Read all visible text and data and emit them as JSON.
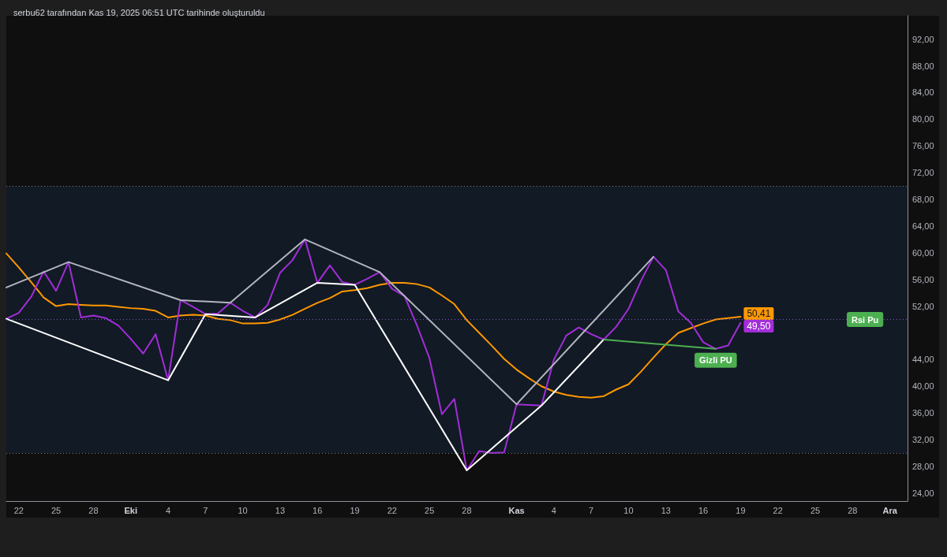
{
  "chart_data": {
    "type": "line",
    "title": "serbu62 tarafından Kas 19, 2025 06:51 UTC tarihinde oluşturuldu",
    "x": [
      "2025-09-21",
      "2025-09-22",
      "2025-09-23",
      "2025-09-24",
      "2025-09-25",
      "2025-09-26",
      "2025-09-27",
      "2025-09-28",
      "2025-09-29",
      "2025-09-30",
      "2025-10-01",
      "2025-10-02",
      "2025-10-03",
      "2025-10-04",
      "2025-10-05",
      "2025-10-06",
      "2025-10-07",
      "2025-10-08",
      "2025-10-09",
      "2025-10-10",
      "2025-10-11",
      "2025-10-12",
      "2025-10-13",
      "2025-10-14",
      "2025-10-15",
      "2025-10-16",
      "2025-10-17",
      "2025-10-18",
      "2025-10-19",
      "2025-10-20",
      "2025-10-21",
      "2025-10-22",
      "2025-10-23",
      "2025-10-24",
      "2025-10-25",
      "2025-10-26",
      "2025-10-27",
      "2025-10-28",
      "2025-10-29",
      "2025-10-30",
      "2025-10-31",
      "2025-11-01",
      "2025-11-02",
      "2025-11-03",
      "2025-11-04",
      "2025-11-05",
      "2025-11-06",
      "2025-11-07",
      "2025-11-08",
      "2025-11-09",
      "2025-11-10",
      "2025-11-11",
      "2025-11-12",
      "2025-11-13",
      "2025-11-14",
      "2025-11-15",
      "2025-11-16",
      "2025-11-17",
      "2025-11-18",
      "2025-11-19"
    ],
    "series": [
      {
        "color": "#ff9800",
        "values": [
          59.9,
          57.8,
          55.6,
          53.3,
          52.0,
          52.3,
          52.2,
          52.1,
          52.1,
          51.9,
          51.7,
          51.6,
          51.3,
          50.3,
          50.6,
          50.7,
          50.6,
          50.1,
          49.9,
          49.4,
          49.4,
          49.5,
          50.0,
          50.7,
          51.6,
          52.5,
          53.2,
          54.2,
          54.4,
          54.7,
          55.2,
          55.5,
          55.5,
          55.3,
          54.8,
          53.6,
          52.3,
          49.9,
          48.0,
          46.1,
          44.1,
          42.5,
          41.2,
          40.0,
          39.2,
          38.7,
          38.4,
          38.3,
          38.5,
          39.5,
          40.3,
          42.2,
          44.3,
          46.3,
          48.0,
          48.7,
          49.4,
          50.0,
          50.2,
          50.41
        ],
        "value_labels": [
          null,
          null,
          null,
          null,
          null,
          null,
          null,
          null,
          null,
          null,
          null,
          null,
          null,
          null,
          null,
          null,
          null,
          null,
          null,
          null,
          null,
          null,
          null,
          null,
          null,
          null,
          null,
          null,
          null,
          null,
          null,
          null,
          null,
          null,
          null,
          null,
          null,
          null,
          null,
          null,
          null,
          null,
          null,
          null,
          null,
          null,
          null,
          null,
          null,
          null,
          null,
          null,
          null,
          null,
          null,
          null,
          null,
          null,
          null,
          "50,41"
        ]
      },
      {
        "color": "#a12ed8",
        "values": [
          50.1,
          51.0,
          53.4,
          57.2,
          54.3,
          58.6,
          50.3,
          50.6,
          50.2,
          49.1,
          47.1,
          44.9,
          47.8,
          40.9,
          52.9,
          51.9,
          50.8,
          50.9,
          52.5,
          51.3,
          50.3,
          52.2,
          57.0,
          58.9,
          62.0,
          55.5,
          58.1,
          55.6,
          55.2,
          56.1,
          57.1,
          54.6,
          53.5,
          49.1,
          44.2,
          35.8,
          38.1,
          27.4,
          30.3,
          30.0,
          30.1,
          37.3,
          37.2,
          37.1,
          44.0,
          47.6,
          48.8,
          47.8,
          47.0,
          48.9,
          51.6,
          55.8,
          59.4,
          57.4,
          51.2,
          49.5,
          46.6,
          45.6,
          46.1,
          49.5
        ],
        "value_labels": [
          null,
          null,
          null,
          null,
          null,
          null,
          null,
          null,
          null,
          null,
          null,
          null,
          null,
          null,
          null,
          null,
          null,
          null,
          null,
          null,
          null,
          null,
          null,
          null,
          null,
          null,
          null,
          null,
          null,
          null,
          null,
          null,
          null,
          null,
          null,
          null,
          null,
          null,
          null,
          null,
          null,
          null,
          null,
          null,
          null,
          null,
          null,
          null,
          null,
          null,
          null,
          null,
          null,
          null,
          null,
          null,
          null,
          null,
          null,
          "49,50"
        ]
      },
      {
        "color": "#b2b5be",
        "x": [
          "2025-09-21",
          "2025-09-26",
          "2025-10-05",
          "2025-10-09",
          "2025-10-15",
          "2025-10-21",
          "2025-11-01",
          "2025-11-12"
        ],
        "values": [
          54.8,
          58.6,
          52.9,
          52.5,
          62.0,
          57.1,
          37.3,
          59.4
        ]
      },
      {
        "color": "#ffffff",
        "x": [
          "2025-09-21",
          "2025-10-04",
          "2025-10-07",
          "2025-10-11",
          "2025-10-16",
          "2025-10-19",
          "2025-10-28",
          "2025-11-03",
          "2025-11-08"
        ],
        "values": [
          50.1,
          40.9,
          50.8,
          50.3,
          55.5,
          55.2,
          27.4,
          37.1,
          47.0
        ]
      },
      {
        "color": "#4caf50",
        "x": [
          "2025-11-08",
          "2025-11-17"
        ],
        "values": [
          47.0,
          45.6
        ]
      }
    ],
    "xlim": [
      "2025-09-21",
      "2025-12-02T10:00"
    ],
    "xticks": [
      {
        "value": "2025-09-22",
        "label": "22"
      },
      {
        "value": "2025-09-25",
        "label": "25"
      },
      {
        "value": "2025-09-28",
        "label": "28"
      },
      {
        "value": "2025-10-01",
        "label": "Eki"
      },
      {
        "value": "2025-10-04",
        "label": "4"
      },
      {
        "value": "2025-10-07",
        "label": "7"
      },
      {
        "value": "2025-10-10",
        "label": "10"
      },
      {
        "value": "2025-10-13",
        "label": "13"
      },
      {
        "value": "2025-10-16",
        "label": "16"
      },
      {
        "value": "2025-10-19",
        "label": "19"
      },
      {
        "value": "2025-10-22",
        "label": "22"
      },
      {
        "value": "2025-10-25",
        "label": "25"
      },
      {
        "value": "2025-10-28",
        "label": "28"
      },
      {
        "value": "2025-11-01",
        "label": "Kas"
      },
      {
        "value": "2025-11-04",
        "label": "4"
      },
      {
        "value": "2025-11-07",
        "label": "7"
      },
      {
        "value": "2025-11-10",
        "label": "10"
      },
      {
        "value": "2025-11-13",
        "label": "13"
      },
      {
        "value": "2025-11-16",
        "label": "16"
      },
      {
        "value": "2025-11-19",
        "label": "19"
      },
      {
        "value": "2025-11-22",
        "label": "22"
      },
      {
        "value": "2025-11-25",
        "label": "25"
      },
      {
        "value": "2025-11-28",
        "label": "28"
      },
      {
        "value": "2025-12-01",
        "label": "Ara"
      }
    ],
    "ylim": [
      22.8,
      95.5
    ],
    "yticks": [
      {
        "value": 24,
        "label": "24,00"
      },
      {
        "value": 28,
        "label": "28,00"
      },
      {
        "value": 32,
        "label": "32,00"
      },
      {
        "value": 36,
        "label": "36,00"
      },
      {
        "value": 40,
        "label": "40,00"
      },
      {
        "value": 44,
        "label": "44,00"
      },
      {
        "value": 52,
        "label": "52,00"
      },
      {
        "value": 56,
        "label": "56,00"
      },
      {
        "value": 60,
        "label": "60,00"
      },
      {
        "value": 64,
        "label": "64,00"
      },
      {
        "value": 68,
        "label": "68,00"
      },
      {
        "value": 72,
        "label": "72,00"
      },
      {
        "value": 76,
        "label": "76,00"
      },
      {
        "value": 80,
        "label": "80,00"
      },
      {
        "value": 84,
        "label": "84,00"
      },
      {
        "value": 88,
        "label": "88,00"
      },
      {
        "value": 92,
        "label": "92,00"
      }
    ],
    "bands": [
      {
        "axis": "y",
        "from": 30,
        "to": 70,
        "color": "#121a25"
      }
    ],
    "ref_lines": [
      {
        "axis": "y",
        "value": 70,
        "color": "#787b86",
        "line_style": "dotted"
      },
      {
        "axis": "y",
        "value": 50,
        "color": "#7e57c2",
        "line_style": "dotted"
      },
      {
        "axis": "y",
        "value": 30,
        "color": "#787b86",
        "line_style": "dotted"
      }
    ],
    "annotations": [
      {
        "text": "Gizli PU",
        "x": "2025-11-17",
        "y": 45.6
      },
      {
        "text": "Rsi Pu",
        "x": "2025-11-29",
        "y": 50
      }
    ],
    "marker": "none"
  }
}
